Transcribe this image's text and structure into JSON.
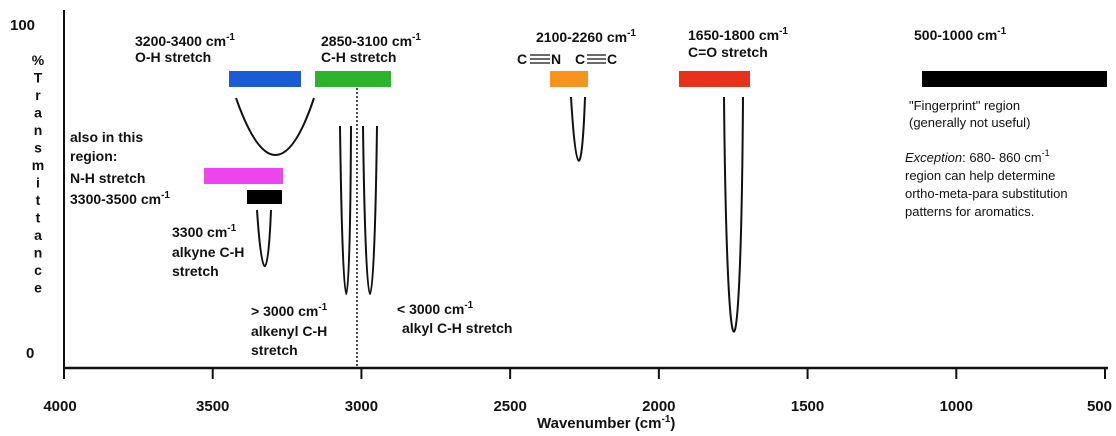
{
  "axis": {
    "x_label": "Wavenumber (cm",
    "x_label_sup": "-1",
    "x_label_end": ")",
    "x_ticks": [
      "4000",
      "3500",
      "3000",
      "2500",
      "2000",
      "1500",
      "1000",
      "500"
    ],
    "y_top": "100",
    "y_bottom": "0",
    "y_label_letters": [
      "%",
      "T",
      "r",
      "a",
      "n",
      "s",
      "m",
      "i",
      "t",
      "t",
      "a",
      "n",
      "c",
      "e"
    ],
    "x_range": [
      4000,
      500
    ]
  },
  "regions": {
    "oh": {
      "range": "3200-3400 cm",
      "sup": "-1",
      "name": "O-H stretch",
      "color": "#1a5bd6"
    },
    "ch": {
      "range": "2850-3100 cm",
      "sup": "-1",
      "name": "C-H stretch",
      "color": "#2bb52b"
    },
    "triple": {
      "range": "2100-2260 cm",
      "sup": "-1",
      "cn": "C",
      "cn_n": "N",
      "cc": "C",
      "cc_c": "C",
      "color": "#f7941d"
    },
    "co": {
      "range": "1650-1800 cm",
      "sup": "-1",
      "name": "C=O stretch",
      "color": "#e8311a"
    },
    "fp": {
      "range": "500-1000 cm",
      "sup": "-1",
      "color": "#000000"
    }
  },
  "nh": {
    "also_line1": "also in this",
    "also_line2": "region:",
    "name": "N-H stretch",
    "range": "3300-3500 cm",
    "sup": "-1",
    "color": "#ee44ee",
    "bar2_color": "#000000"
  },
  "alkyne": {
    "line1": "3300 cm",
    "sup": "-1",
    "line2": "alkyne C-H",
    "line3": "stretch"
  },
  "alkenyl": {
    "line1": "> 3000 cm",
    "sup": "-1",
    "line2": "alkenyl C-H",
    "line3": "stretch"
  },
  "alkyl": {
    "line1": "< 3000 cm",
    "sup": "-1",
    "line2": "alkyl C-H stretch"
  },
  "fingerprint": {
    "line1": "\"Fingerprint\" region",
    "line2": "(generally not useful)"
  },
  "exception": {
    "label": "Exception",
    "rest1": ": 680- 860 cm",
    "sup": "-1",
    "line2": "region can help determine",
    "line3": "ortho-meta-para substitution",
    "line4": "patterns for aromatics."
  }
}
